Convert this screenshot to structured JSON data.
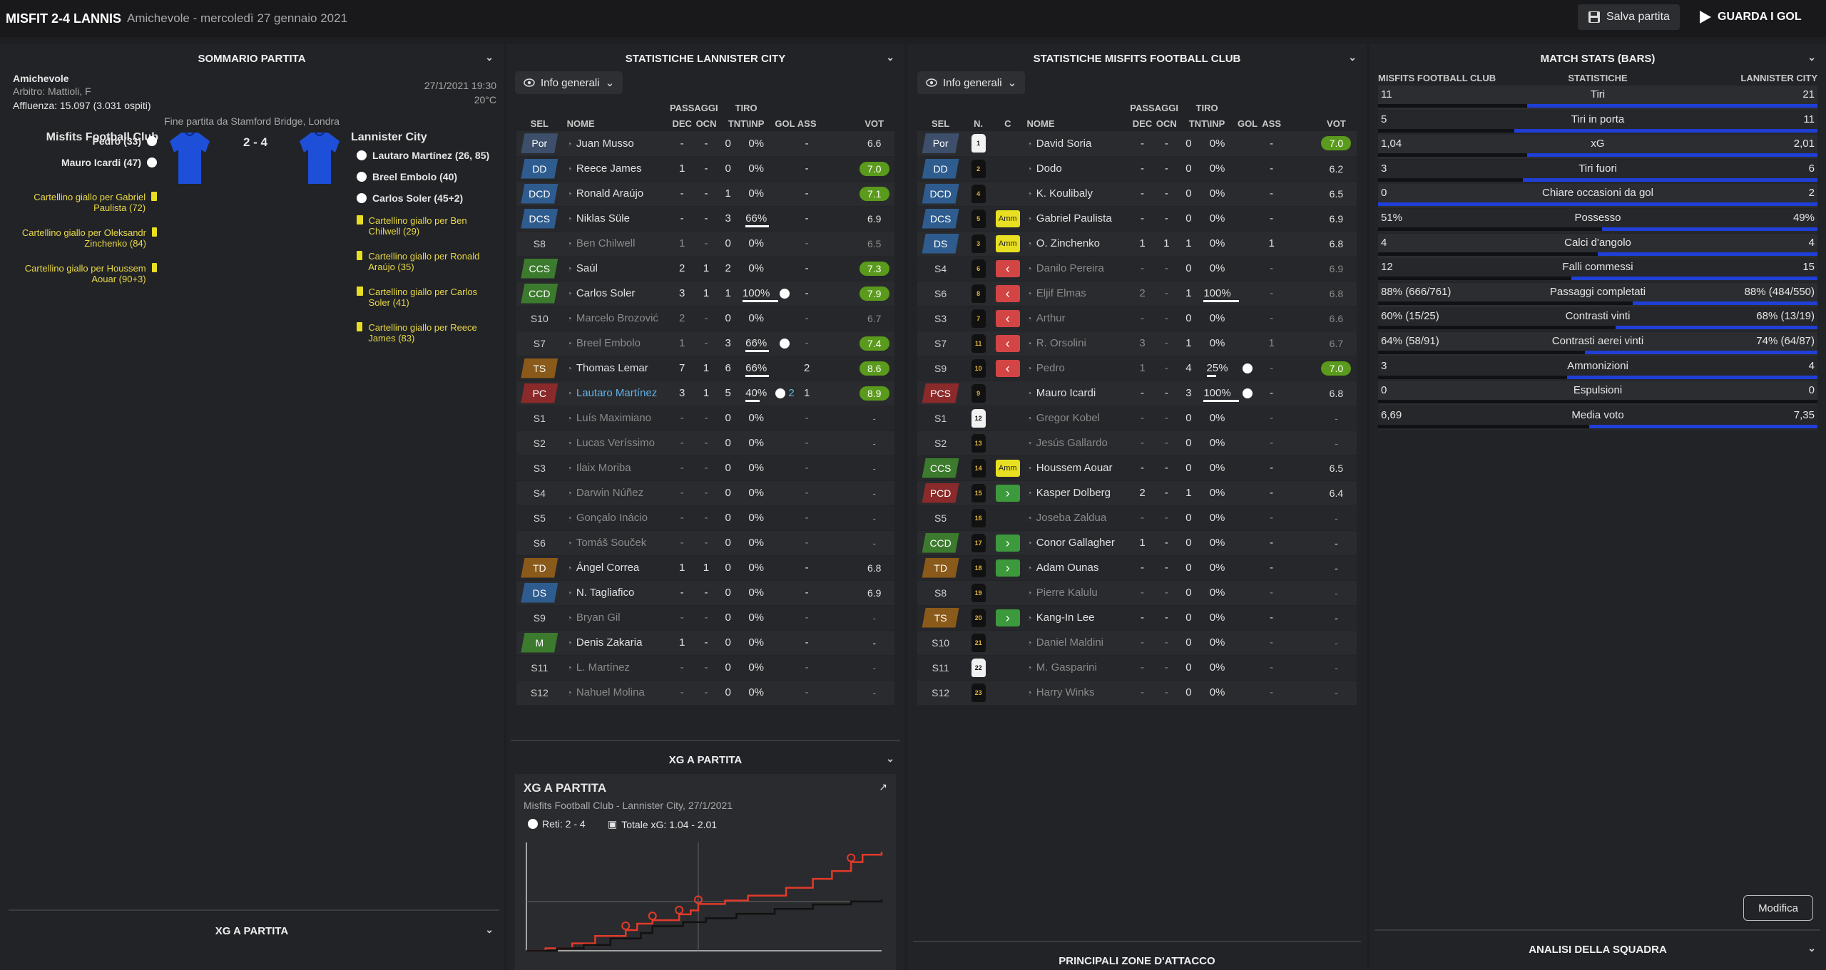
{
  "header": {
    "title": "MISFIT 2-4 LANNIS",
    "subtitle": "Amichevole - mercoledì 27 gennaio 2021",
    "save_label": "Salva partita",
    "goals_label": "GUARDA I GOL"
  },
  "colors": {
    "accent": "#1f3fd6",
    "rating_green": "#5a9a1c",
    "yellow": "#e8df22",
    "red": "#d34545"
  },
  "summary": {
    "title": "SOMMARIO PARTITA",
    "competition": "Amichevole",
    "referee": "Arbitro: Mattioli, F",
    "attendance": "Affluenza: 15.097 (3.031 ospiti)",
    "datetime": "27/1/2021 19:30",
    "temp": "20°C",
    "venue": "Fine partita da Stamford Bridge, Londra",
    "home": "Misfits Football Club",
    "away": "Lannister City",
    "score": "2 - 4",
    "home_events": [
      "Pedro (33)",
      "Mauro Icardi (47)"
    ],
    "home_cards": [
      "Cartellino giallo per Gabriel Paulista (72)",
      "Cartellino giallo per Oleksandr Zinchenko (84)",
      "Cartellino giallo per Houssem Aouar (90+3)"
    ],
    "away_events": [
      "Lautaro Martínez (26, 85)",
      "Breel Embolo (40)",
      "Carlos Soler (45+2)"
    ],
    "away_cards": [
      "Cartellino giallo per Ben Chilwell (29)",
      "Cartellino giallo per Ronald Araújo (35)",
      "Cartellino giallo per Carlos Soler (41)",
      "Cartellino giallo per Reece James (83)"
    ],
    "xg_section": "XG A PARTITA"
  },
  "lannister": {
    "title": "STATISTICHE LANNISTER CITY",
    "dropdown": "Info generali",
    "hdr": {
      "passaggi": "PASSAGGI",
      "tiro": "TIRO",
      "sel": "SEL",
      "nome": "NOME",
      "dec": "DEC",
      "ocn": "OCN",
      "tnt": "TNT\\INP",
      "gol": "GOL",
      "ass": "ASS",
      "vot": "VOT"
    },
    "rows": [
      {
        "sel": "Por",
        "c": "#3d4f6b",
        "n": "Juan Musso",
        "dec": "-",
        "ocn": "-",
        "t": "0",
        "p": "0%",
        "g": "",
        "a": "-",
        "v": "6.6",
        "hi": false,
        "on": true
      },
      {
        "sel": "DD",
        "c": "#2e5c8f",
        "n": "Reece James",
        "dec": "1",
        "ocn": "-",
        "t": "0",
        "p": "0%",
        "g": "",
        "a": "-",
        "v": "7.0",
        "hi": true,
        "on": true
      },
      {
        "sel": "DCD",
        "c": "#2e5c8f",
        "n": "Ronald Araújo",
        "dec": "-",
        "ocn": "-",
        "t": "1",
        "p": "0%",
        "g": "",
        "a": "-",
        "v": "7.1",
        "hi": true,
        "on": true
      },
      {
        "sel": "DCS",
        "c": "#2e5c8f",
        "n": "Niklas Süle",
        "dec": "-",
        "ocn": "-",
        "t": "3",
        "p": "66%",
        "g": "",
        "a": "-",
        "v": "6.9",
        "hi": false,
        "on": true
      },
      {
        "sel": "S8",
        "c": "",
        "n": "Ben Chilwell",
        "dec": "1",
        "ocn": "-",
        "t": "0",
        "p": "0%",
        "g": "",
        "a": "-",
        "v": "6.5",
        "hi": false,
        "on": false
      },
      {
        "sel": "CCS",
        "c": "#3c7a2e",
        "n": "Saúl",
        "dec": "2",
        "ocn": "1",
        "t": "2",
        "p": "0%",
        "g": "",
        "a": "-",
        "v": "7.3",
        "hi": true,
        "on": true
      },
      {
        "sel": "CCD",
        "c": "#3c7a2e",
        "n": "Carlos Soler",
        "dec": "3",
        "ocn": "1",
        "t": "1",
        "p": "100%",
        "g": "1",
        "a": "-",
        "v": "7.9",
        "hi": true,
        "on": true
      },
      {
        "sel": "S10",
        "c": "",
        "n": "Marcelo Brozović",
        "dec": "2",
        "ocn": "-",
        "t": "0",
        "p": "0%",
        "g": "",
        "a": "-",
        "v": "6.7",
        "hi": false,
        "on": false
      },
      {
        "sel": "S7",
        "c": "",
        "n": "Breel Embolo",
        "dec": "1",
        "ocn": "-",
        "t": "3",
        "p": "66%",
        "g": "1",
        "a": "-",
        "v": "7.4",
        "hi": true,
        "on": false
      },
      {
        "sel": "TS",
        "c": "#8a5a1a",
        "n": "Thomas Lemar",
        "dec": "7",
        "ocn": "1",
        "t": "6",
        "p": "66%",
        "g": "",
        "a": "2",
        "v": "8.6",
        "hi": true,
        "on": true
      },
      {
        "sel": "PC",
        "c": "#8a2a2a",
        "n": "Lautaro Martínez",
        "dec": "3",
        "ocn": "1",
        "t": "5",
        "p": "40%",
        "g": "2",
        "a": "1",
        "v": "8.9",
        "hi": true,
        "on": true
      },
      {
        "sel": "S1",
        "c": "",
        "n": "Luís Maximiano",
        "dec": "-",
        "ocn": "-",
        "t": "0",
        "p": "0%",
        "g": "",
        "a": "-",
        "v": "-",
        "hi": false,
        "on": false
      },
      {
        "sel": "S2",
        "c": "",
        "n": "Lucas Veríssimo",
        "dec": "-",
        "ocn": "-",
        "t": "0",
        "p": "0%",
        "g": "",
        "a": "-",
        "v": "-",
        "hi": false,
        "on": false
      },
      {
        "sel": "S3",
        "c": "",
        "n": "Ilaix Moriba",
        "dec": "-",
        "ocn": "-",
        "t": "0",
        "p": "0%",
        "g": "",
        "a": "-",
        "v": "-",
        "hi": false,
        "on": false
      },
      {
        "sel": "S4",
        "c": "",
        "n": "Darwin Núñez",
        "dec": "-",
        "ocn": "-",
        "t": "0",
        "p": "0%",
        "g": "",
        "a": "-",
        "v": "-",
        "hi": false,
        "on": false
      },
      {
        "sel": "S5",
        "c": "",
        "n": "Gonçalo Inácio",
        "dec": "-",
        "ocn": "-",
        "t": "0",
        "p": "0%",
        "g": "",
        "a": "-",
        "v": "-",
        "hi": false,
        "on": false
      },
      {
        "sel": "S6",
        "c": "",
        "n": "Tomáš Souček",
        "dec": "-",
        "ocn": "-",
        "t": "0",
        "p": "0%",
        "g": "",
        "a": "-",
        "v": "-",
        "hi": false,
        "on": false
      },
      {
        "sel": "TD",
        "c": "#8a5a1a",
        "n": "Ángel Correa",
        "dec": "1",
        "ocn": "1",
        "t": "0",
        "p": "0%",
        "g": "",
        "a": "-",
        "v": "6.8",
        "hi": false,
        "on": true
      },
      {
        "sel": "DS",
        "c": "#2e5c8f",
        "n": "N. Tagliafico",
        "dec": "-",
        "ocn": "-",
        "t": "0",
        "p": "0%",
        "g": "",
        "a": "-",
        "v": "6.9",
        "hi": false,
        "on": true
      },
      {
        "sel": "S9",
        "c": "",
        "n": "Bryan Gil",
        "dec": "-",
        "ocn": "-",
        "t": "0",
        "p": "0%",
        "g": "",
        "a": "-",
        "v": "-",
        "hi": false,
        "on": false
      },
      {
        "sel": "M",
        "c": "#3c7a2e",
        "n": "Denis Zakaria",
        "dec": "1",
        "ocn": "-",
        "t": "0",
        "p": "0%",
        "g": "",
        "a": "-",
        "v": "-",
        "hi": false,
        "on": true
      },
      {
        "sel": "S11",
        "c": "",
        "n": "L. Martínez",
        "dec": "-",
        "ocn": "-",
        "t": "0",
        "p": "0%",
        "g": "",
        "a": "-",
        "v": "-",
        "hi": false,
        "on": false
      },
      {
        "sel": "S12",
        "c": "",
        "n": "Nahuel Molina",
        "dec": "-",
        "ocn": "-",
        "t": "0",
        "p": "0%",
        "g": "",
        "a": "-",
        "v": "-",
        "hi": false,
        "on": false
      }
    ]
  },
  "misfits": {
    "title": "STATISTICHE MISFITS FOOTBALL CLUB",
    "dropdown": "Info generali",
    "hdr": {
      "passaggi": "PASSAGGI",
      "tiro": "TIRO",
      "sel": "SEL",
      "n": "N.",
      "c": "C",
      "nome": "NOME",
      "dec": "DEC",
      "ocn": "OCN",
      "tnt": "TNT\\INP",
      "gol": "GOL",
      "ass": "ASS",
      "vot": "VOT"
    },
    "rows": [
      {
        "sel": "Por",
        "c": "#3d4f6b",
        "num": "1",
        "w": true,
        "cd": "",
        "n": "David Soria",
        "dec": "-",
        "ocn": "-",
        "t": "0",
        "p": "0%",
        "g": "",
        "a": "-",
        "v": "7.0",
        "hi": true,
        "on": true
      },
      {
        "sel": "DD",
        "c": "#2e5c8f",
        "num": "2",
        "w": false,
        "cd": "",
        "n": "Dodo",
        "dec": "-",
        "ocn": "-",
        "t": "0",
        "p": "0%",
        "g": "",
        "a": "-",
        "v": "6.2",
        "hi": false,
        "on": true
      },
      {
        "sel": "DCD",
        "c": "#2e5c8f",
        "num": "4",
        "w": false,
        "cd": "",
        "n": "K. Koulibaly",
        "dec": "-",
        "ocn": "-",
        "t": "0",
        "p": "0%",
        "g": "",
        "a": "-",
        "v": "6.5",
        "hi": false,
        "on": true
      },
      {
        "sel": "DCS",
        "c": "#2e5c8f",
        "num": "5",
        "w": false,
        "cd": "Amm",
        "n": "Gabriel Paulista",
        "dec": "-",
        "ocn": "-",
        "t": "0",
        "p": "0%",
        "g": "",
        "a": "-",
        "v": "6.9",
        "hi": false,
        "on": true
      },
      {
        "sel": "DS",
        "c": "#2e5c8f",
        "num": "3",
        "w": false,
        "cd": "Amm",
        "n": "O. Zinchenko",
        "dec": "1",
        "ocn": "1",
        "t": "1",
        "p": "0%",
        "g": "",
        "a": "1",
        "v": "6.8",
        "hi": false,
        "on": true
      },
      {
        "sel": "S4",
        "c": "",
        "num": "6",
        "w": false,
        "cd": "out",
        "n": "Danilo Pereira",
        "dec": "-",
        "ocn": "-",
        "t": "0",
        "p": "0%",
        "g": "",
        "a": "-",
        "v": "6.9",
        "hi": false,
        "on": false
      },
      {
        "sel": "S6",
        "c": "",
        "num": "8",
        "w": false,
        "cd": "out",
        "n": "Eljif Elmas",
        "dec": "2",
        "ocn": "-",
        "t": "1",
        "p": "100%",
        "g": "",
        "a": "-",
        "v": "6.8",
        "hi": false,
        "on": false
      },
      {
        "sel": "S3",
        "c": "",
        "num": "7",
        "w": false,
        "cd": "out",
        "n": "Arthur",
        "dec": "-",
        "ocn": "-",
        "t": "0",
        "p": "0%",
        "g": "",
        "a": "-",
        "v": "6.6",
        "hi": false,
        "on": false
      },
      {
        "sel": "S7",
        "c": "",
        "num": "11",
        "w": false,
        "cd": "out",
        "n": "R. Orsolini",
        "dec": "3",
        "ocn": "-",
        "t": "1",
        "p": "0%",
        "g": "",
        "a": "1",
        "v": "6.7",
        "hi": false,
        "on": false
      },
      {
        "sel": "S9",
        "c": "",
        "num": "10",
        "w": false,
        "cd": "out",
        "n": "Pedro",
        "dec": "1",
        "ocn": "-",
        "t": "4",
        "p": "25%",
        "g": "1",
        "a": "-",
        "v": "7.0",
        "hi": true,
        "on": false
      },
      {
        "sel": "PCS",
        "c": "#8a2a2a",
        "num": "9",
        "w": false,
        "cd": "",
        "n": "Mauro Icardi",
        "dec": "-",
        "ocn": "-",
        "t": "3",
        "p": "100%",
        "g": "1",
        "a": "-",
        "v": "6.8",
        "hi": false,
        "on": true
      },
      {
        "sel": "S1",
        "c": "",
        "num": "12",
        "w": true,
        "cd": "",
        "n": "Gregor Kobel",
        "dec": "-",
        "ocn": "-",
        "t": "0",
        "p": "0%",
        "g": "",
        "a": "-",
        "v": "-",
        "hi": false,
        "on": false
      },
      {
        "sel": "S2",
        "c": "",
        "num": "13",
        "w": false,
        "cd": "",
        "n": "Jesús Gallardo",
        "dec": "-",
        "ocn": "-",
        "t": "0",
        "p": "0%",
        "g": "",
        "a": "-",
        "v": "-",
        "hi": false,
        "on": false
      },
      {
        "sel": "CCS",
        "c": "#3c7a2e",
        "num": "14",
        "w": false,
        "cd": "Amm",
        "n": "Houssem Aouar",
        "dec": "-",
        "ocn": "-",
        "t": "0",
        "p": "0%",
        "g": "",
        "a": "-",
        "v": "6.5",
        "hi": false,
        "on": true
      },
      {
        "sel": "PCD",
        "c": "#8a2a2a",
        "num": "15",
        "w": false,
        "cd": "in",
        "n": "Kasper Dolberg",
        "dec": "2",
        "ocn": "-",
        "t": "1",
        "p": "0%",
        "g": "",
        "a": "-",
        "v": "6.4",
        "hi": false,
        "on": true
      },
      {
        "sel": "S5",
        "c": "",
        "num": "16",
        "w": false,
        "cd": "",
        "n": "Joseba Zaldua",
        "dec": "-",
        "ocn": "-",
        "t": "0",
        "p": "0%",
        "g": "",
        "a": "-",
        "v": "-",
        "hi": false,
        "on": false
      },
      {
        "sel": "CCD",
        "c": "#3c7a2e",
        "num": "17",
        "w": false,
        "cd": "in",
        "n": "Conor Gallagher",
        "dec": "1",
        "ocn": "-",
        "t": "0",
        "p": "0%",
        "g": "",
        "a": "-",
        "v": "-",
        "hi": false,
        "on": true
      },
      {
        "sel": "TD",
        "c": "#8a5a1a",
        "num": "18",
        "w": false,
        "cd": "in",
        "n": "Adam Ounas",
        "dec": "-",
        "ocn": "-",
        "t": "0",
        "p": "0%",
        "g": "",
        "a": "-",
        "v": "-",
        "hi": false,
        "on": true
      },
      {
        "sel": "S8",
        "c": "",
        "num": "19",
        "w": false,
        "cd": "",
        "n": "Pierre Kalulu",
        "dec": "-",
        "ocn": "-",
        "t": "0",
        "p": "0%",
        "g": "",
        "a": "-",
        "v": "-",
        "hi": false,
        "on": false
      },
      {
        "sel": "TS",
        "c": "#8a5a1a",
        "num": "20",
        "w": false,
        "cd": "in",
        "n": "Kang-In Lee",
        "dec": "-",
        "ocn": "-",
        "t": "0",
        "p": "0%",
        "g": "",
        "a": "-",
        "v": "-",
        "hi": false,
        "on": true
      },
      {
        "sel": "S10",
        "c": "",
        "num": "21",
        "w": false,
        "cd": "",
        "n": "Daniel Maldini",
        "dec": "-",
        "ocn": "-",
        "t": "0",
        "p": "0%",
        "g": "",
        "a": "-",
        "v": "-",
        "hi": false,
        "on": false
      },
      {
        "sel": "S11",
        "c": "",
        "num": "22",
        "w": true,
        "cd": "",
        "n": "M. Gasparini",
        "dec": "-",
        "ocn": "-",
        "t": "0",
        "p": "0%",
        "g": "",
        "a": "-",
        "v": "-",
        "hi": false,
        "on": false
      },
      {
        "sel": "S12",
        "c": "",
        "num": "23",
        "w": false,
        "cd": "",
        "n": "Harry Winks",
        "dec": "-",
        "ocn": "-",
        "t": "0",
        "p": "0%",
        "g": "",
        "a": "-",
        "v": "-",
        "hi": false,
        "on": false
      }
    ]
  },
  "xg": {
    "section": "XG A PARTITA",
    "title": "XG A PARTITA",
    "subtitle": "Misfits Football Club - Lannister City, 27/1/2021",
    "goals": "Reti: 2 - 4",
    "total": "Totale xG: 1.04 - 2.01",
    "attack_section": "PRINCIPALI ZONE D'ATTACCO"
  },
  "chart_data": {
    "type": "line",
    "title": "XG A PARTITA",
    "xlabel": "",
    "ylabel": "",
    "xlim": [
      0,
      93
    ],
    "ylim": [
      0,
      2.2
    ],
    "series": [
      {
        "name": "Lannister City",
        "color": "#e23a2a",
        "x": [
          0,
          5,
          12,
          18,
          26,
          29,
          33,
          40,
          43,
          45,
          52,
          58,
          68,
          75,
          80,
          85,
          88,
          93
        ],
        "y": [
          0,
          0.05,
          0.15,
          0.3,
          0.42,
          0.55,
          0.62,
          0.74,
          0.82,
          0.95,
          1.02,
          1.12,
          1.28,
          1.46,
          1.62,
          1.8,
          1.95,
          2.01
        ]
      },
      {
        "name": "Misfits Football Club",
        "color": "#111111",
        "x": [
          0,
          8,
          15,
          22,
          30,
          33,
          41,
          47,
          55,
          65,
          75,
          85,
          93
        ],
        "y": [
          0,
          0.05,
          0.12,
          0.25,
          0.36,
          0.5,
          0.58,
          0.66,
          0.75,
          0.85,
          0.94,
          1.0,
          1.04
        ]
      }
    ],
    "goal_minutes": [
      26,
      33,
      40,
      45,
      85
    ]
  },
  "match_stats": {
    "title": "MATCH STATS (BARS)",
    "home": "MISFITS FOOTBALL CLUB",
    "mid": "STATISTICHE",
    "away": "LANNISTER CITY",
    "rows": [
      {
        "label": "Tiri",
        "home": "11",
        "away": "21",
        "h": 0.34
      },
      {
        "label": "Tiri in porta",
        "home": "5",
        "away": "11",
        "h": 0.31
      },
      {
        "label": "xG",
        "home": "1,04",
        "away": "2,01",
        "h": 0.34
      },
      {
        "label": "Tiri fuori",
        "home": "3",
        "away": "6",
        "h": 0.33
      },
      {
        "label": "Chiare occasioni da gol",
        "home": "0",
        "away": "2",
        "h": 0.0
      },
      {
        "label": "Possesso",
        "home": "51%",
        "away": "49%",
        "h": 0.51
      },
      {
        "label": "Calci d'angolo",
        "home": "4",
        "away": "4",
        "h": 0.5
      },
      {
        "label": "Falli commessi",
        "home": "12",
        "away": "15",
        "h": 0.44
      },
      {
        "label": "Passaggi completati",
        "home": "88% (666/761)",
        "away": "88% (484/550)",
        "h": 0.58
      },
      {
        "label": "Contrasti vinti",
        "home": "60% (15/25)",
        "away": "68% (13/19)",
        "h": 0.54
      },
      {
        "label": "Contrasti aerei vinti",
        "home": "64% (58/91)",
        "away": "74% (64/87)",
        "h": 0.47
      },
      {
        "label": "Ammonizioni",
        "home": "3",
        "away": "4",
        "h": 0.43
      },
      {
        "label": "Espulsioni",
        "home": "0",
        "away": "0",
        "h": 0.5
      },
      {
        "label": "Media voto",
        "home": "6,69",
        "away": "7,35",
        "h": 0.48
      }
    ],
    "modify": "Modifica",
    "analysis": "ANALISI DELLA SQUADRA"
  }
}
